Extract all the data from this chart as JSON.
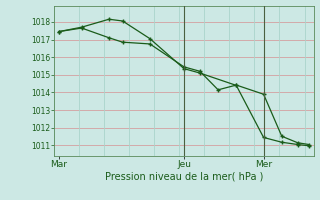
{
  "title": "Pression niveau de la mer( hPa )",
  "bg_color": "#cce8e4",
  "line_color": "#1a5c1a",
  "grid_color_h": "#d4a0a0",
  "grid_color_v": "#aad4cc",
  "ylim": [
    1010.4,
    1018.9
  ],
  "yticks": [
    1011,
    1012,
    1013,
    1014,
    1015,
    1016,
    1017,
    1018
  ],
  "xtick_labels": [
    "Mar",
    "Jeu",
    "Mer"
  ],
  "xtick_pos": [
    0.0,
    5.5,
    9.0
  ],
  "vline_pos": [
    5.5,
    9.0
  ],
  "xlim": [
    -0.2,
    11.2
  ],
  "series1_x": [
    0.0,
    1.0,
    2.2,
    2.8,
    4.0,
    5.5,
    6.2,
    7.0,
    7.8,
    9.0,
    9.8,
    10.5,
    11.0
  ],
  "series1_y": [
    1017.45,
    1017.65,
    1017.1,
    1016.85,
    1016.75,
    1015.45,
    1015.2,
    1014.15,
    1014.42,
    1013.9,
    1011.52,
    1011.15,
    1011.05
  ],
  "series2_x": [
    0.0,
    1.0,
    2.2,
    2.8,
    4.0,
    5.5,
    6.2,
    7.8,
    9.0,
    9.8,
    10.5,
    11.0
  ],
  "series2_y": [
    1017.45,
    1017.7,
    1018.15,
    1018.05,
    1017.05,
    1015.35,
    1015.1,
    1014.4,
    1011.45,
    1011.18,
    1011.05,
    1010.98
  ]
}
